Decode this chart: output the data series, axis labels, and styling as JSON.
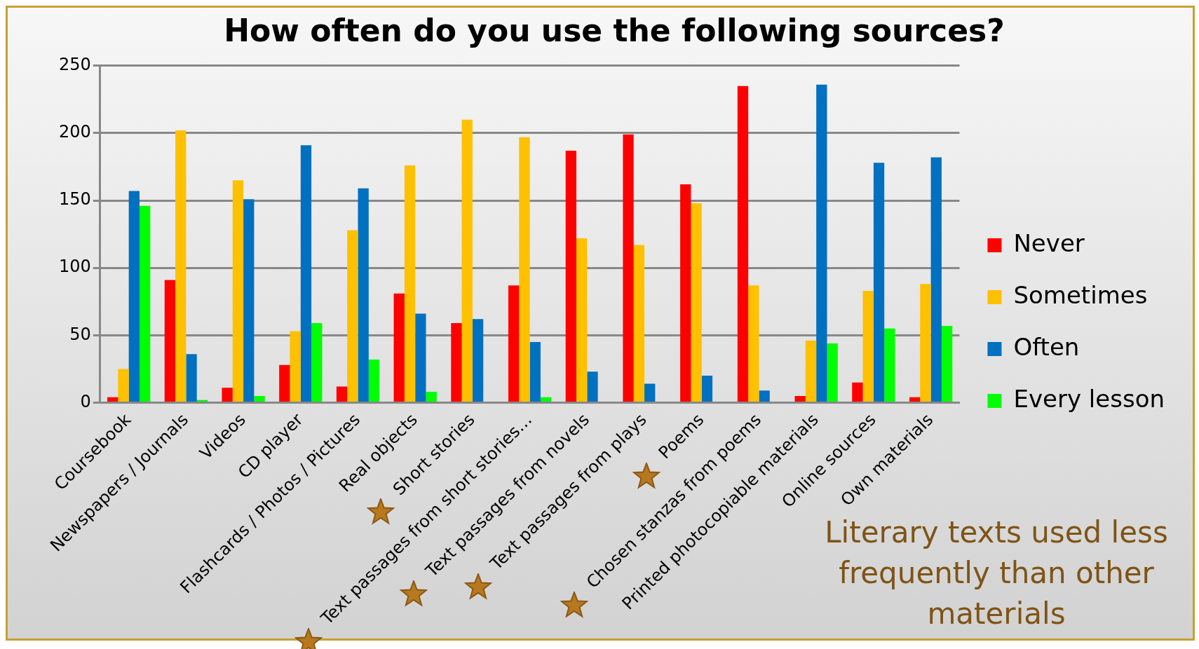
{
  "chart_data": {
    "type": "bar",
    "title": "How often do you use the following sources?",
    "categories": [
      "Coursebook",
      "Newspapers / Journals",
      "Videos",
      "CD player",
      "Flashcards / Photos / Pictures",
      "Real objects",
      "Short stories",
      "Text passages from short stories…",
      "Text passages from novels",
      "Text passages from plays",
      "Poems",
      "Chosen stanzas from poems",
      "Printed photocopiable materials",
      "Online sources",
      "Own materials"
    ],
    "series": [
      {
        "name": "Never",
        "color": "#ff0000",
        "values": [
          4,
          91,
          11,
          28,
          12,
          81,
          59,
          87,
          187,
          199,
          162,
          235,
          5,
          15,
          4
        ]
      },
      {
        "name": "Sometimes",
        "color": "#ffc000",
        "values": [
          25,
          202,
          165,
          53,
          128,
          176,
          210,
          197,
          122,
          117,
          148,
          87,
          46,
          83,
          88
        ]
      },
      {
        "name": "Often",
        "color": "#0070c0",
        "values": [
          157,
          36,
          151,
          191,
          159,
          66,
          62,
          45,
          23,
          14,
          20,
          9,
          236,
          178,
          182
        ]
      },
      {
        "name": "Every lesson",
        "color": "#00ff00",
        "values": [
          146,
          2,
          5,
          59,
          32,
          8,
          null,
          4,
          null,
          null,
          null,
          null,
          44,
          55,
          57
        ]
      }
    ],
    "ylim": [
      0,
      250
    ],
    "yticks": [
      0,
      50,
      100,
      150,
      200,
      250
    ],
    "grid": "y",
    "legend": "right",
    "annotations": [
      "Literary texts used less frequently than other materials"
    ]
  }
}
